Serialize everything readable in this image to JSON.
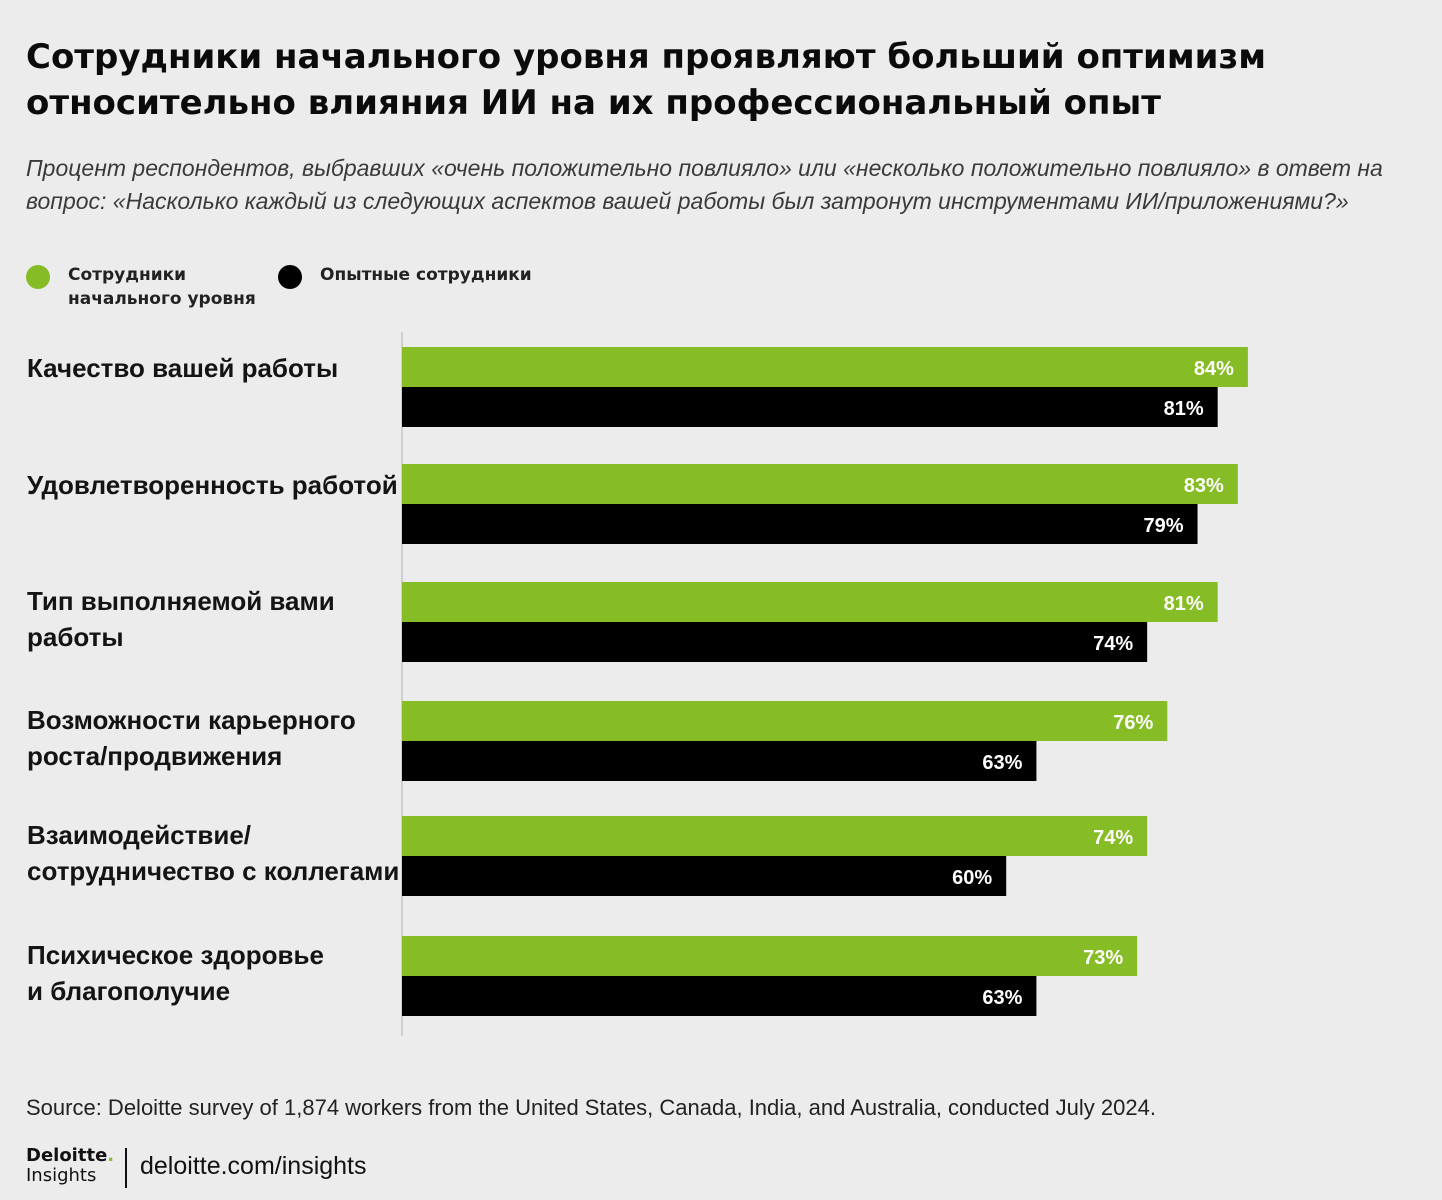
{
  "title": "Сотрудники начального уровня проявляют больший оптимизм относительно влияния ИИ на их профессиональный опыт",
  "subtitle": "Процент респондентов, выбравших «очень положительно повлияло» или «несколько положительно повлияло» в ответ на вопрос: «Насколько каждый из следующих аспектов вашей работы был затронут инструментами ИИ/приложениями?»",
  "legend": [
    {
      "label": "Сотрудники начального уровня",
      "color": "#86bc25"
    },
    {
      "label": "Опытные сотрудники",
      "color": "#000000"
    }
  ],
  "chart_data": {
    "type": "bar",
    "orientation": "horizontal",
    "categories": [
      "Качество вашей работы",
      "Удовлетворенность работой",
      "Тип выполняемой вами работы",
      "Возможности карьерного роста/продвижения",
      "Взаимодействие/ сотрудничество с коллегами",
      "Психическое здоровье и благополучие"
    ],
    "category_lines": [
      [
        "Качество вашей работы"
      ],
      [
        "Удовлетворенность работой"
      ],
      [
        "Тип выполняемой вами",
        "работы"
      ],
      [
        "Возможности карьерного",
        "роста/продвижения"
      ],
      [
        "Взаимодействие/",
        "сотрудничество с коллегами"
      ],
      [
        "Психическое здоровье",
        "и благополучие"
      ]
    ],
    "series": [
      {
        "name": "Сотрудники начального уровня",
        "color": "#86bc25",
        "values": [
          84,
          83,
          81,
          76,
          74,
          73
        ]
      },
      {
        "name": "Опытные сотрудники",
        "color": "#000000",
        "values": [
          81,
          79,
          74,
          63,
          60,
          63
        ]
      }
    ],
    "value_suffix": "%",
    "xlim": [
      0,
      100
    ],
    "grid": false,
    "legend_position": "top-left"
  },
  "source": "Source: Deloitte survey of 1,874 workers from the United States, Canada, India, and Australia, conducted July 2024.",
  "footer": {
    "logo_line1": "Deloitte",
    "logo_dot": ".",
    "logo_line2": "Insights",
    "site": "deloitte.com/insights"
  }
}
